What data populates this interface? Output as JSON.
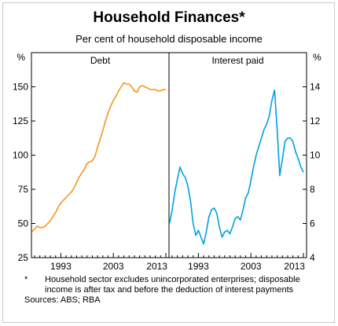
{
  "title": "Household Finances*",
  "subtitle": "Per cent of household disposable income",
  "footnote": {
    "marker": "*",
    "text": "Household sector excludes unincorporated enterprises; disposable income is after tax and before the deduction of interest payments"
  },
  "sources": "Sources: ABS; RBA",
  "colors": {
    "debt": "#f7941d",
    "interest": "#00a0e0",
    "axis": "#000000"
  },
  "chart_data": [
    {
      "type": "line",
      "panel_label": "Debt",
      "ylabel": "%",
      "ylim": [
        25,
        175
      ],
      "yticks": [
        25,
        50,
        75,
        100,
        125,
        150
      ],
      "xlim": [
        1987.4,
        2013.6
      ],
      "xtick_labels": [
        "1993",
        "2003",
        "2013"
      ],
      "series": [
        {
          "x": [
            1987.5,
            1988.0,
            1988.5,
            1989.0,
            1989.5,
            1990.0,
            1990.5,
            1991.0,
            1991.5,
            1992.0,
            1992.5,
            1993.0,
            1993.5,
            1994.0,
            1994.5,
            1995.0,
            1995.5,
            1996.0,
            1996.5,
            1997.0,
            1997.5,
            1998.0,
            1998.5,
            1999.0,
            1999.5,
            2000.0,
            2000.5,
            2001.0,
            2001.5,
            2002.0,
            2002.5,
            2003.0,
            2003.5,
            2004.0,
            2004.5,
            2005.0,
            2005.5,
            2006.0,
            2006.5,
            2007.0,
            2007.5,
            2008.0,
            2008.5,
            2009.0,
            2009.5,
            2010.0,
            2010.5,
            2011.0,
            2011.5,
            2012.0,
            2012.5,
            2013.0
          ],
          "values": [
            44,
            46,
            48,
            47,
            47,
            48,
            50,
            52,
            55,
            58,
            62,
            65,
            67,
            69,
            71,
            73,
            76,
            80,
            84,
            87,
            90,
            94,
            95,
            96,
            99,
            106,
            112,
            118,
            125,
            131,
            136,
            140,
            143,
            147,
            150,
            153,
            152,
            152,
            150,
            147,
            146,
            150,
            151,
            150,
            149,
            148,
            148,
            148,
            147,
            147,
            148,
            148
          ]
        }
      ]
    },
    {
      "type": "line",
      "panel_label": "Interest paid",
      "ylabel": "%",
      "ylim": [
        4,
        16
      ],
      "yticks": [
        4,
        6,
        8,
        10,
        12,
        14
      ],
      "xlim": [
        1987.4,
        2013.6
      ],
      "xtick_labels": [
        "1993",
        "2003",
        "2013"
      ],
      "series": [
        {
          "x": [
            1987.5,
            1988.0,
            1988.5,
            1989.0,
            1989.5,
            1990.0,
            1990.5,
            1991.0,
            1991.5,
            1992.0,
            1992.5,
            1993.0,
            1993.5,
            1994.0,
            1994.5,
            1995.0,
            1995.5,
            1996.0,
            1996.5,
            1997.0,
            1997.5,
            1998.0,
            1998.5,
            1999.0,
            1999.5,
            2000.0,
            2000.5,
            2001.0,
            2001.5,
            2002.0,
            2002.5,
            2003.0,
            2003.5,
            2004.0,
            2004.5,
            2005.0,
            2005.5,
            2006.0,
            2006.5,
            2007.0,
            2007.5,
            2008.0,
            2008.5,
            2009.0,
            2009.5,
            2010.0,
            2010.5,
            2011.0,
            2011.5,
            2012.0,
            2012.5,
            2013.0
          ],
          "values": [
            6.0,
            6.8,
            7.8,
            8.6,
            9.3,
            8.9,
            8.7,
            8.2,
            7.3,
            6.0,
            5.3,
            5.6,
            5.2,
            4.8,
            5.5,
            6.4,
            6.8,
            6.9,
            6.6,
            5.8,
            5.2,
            5.5,
            5.6,
            5.4,
            5.8,
            6.3,
            6.4,
            6.2,
            6.8,
            7.5,
            7.8,
            8.5,
            9.3,
            10.0,
            10.5,
            11.0,
            11.5,
            11.8,
            12.3,
            13.2,
            13.8,
            11.5,
            8.8,
            9.8,
            10.8,
            11.0,
            11.0,
            10.8,
            10.2,
            9.8,
            9.3,
            9.0
          ]
        }
      ]
    }
  ]
}
